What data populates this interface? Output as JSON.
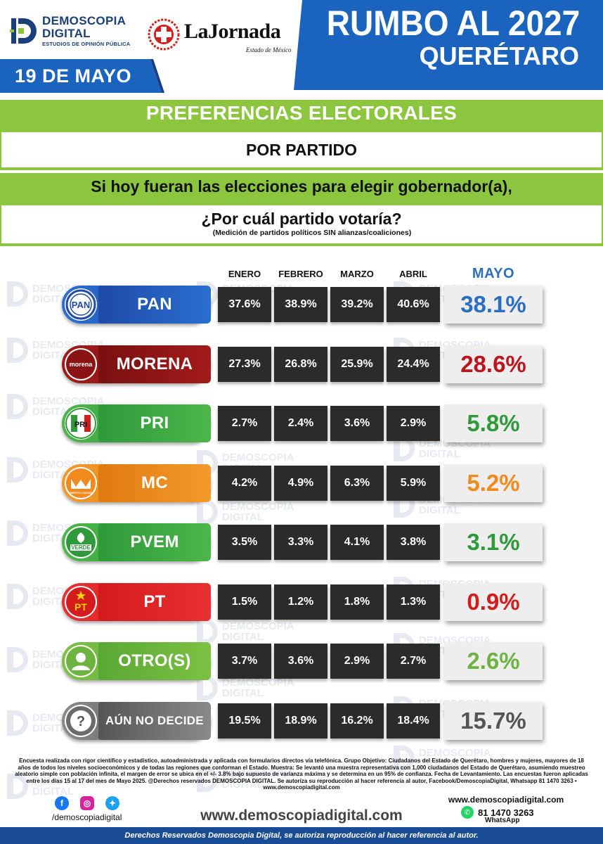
{
  "header": {
    "date": "19 DE MAYO",
    "brand_line1": "DEMOSCOPIA",
    "brand_line2": "DIGITAL",
    "brand_tagline": "ESTUDIOS DE OPINIÓN PÚBLICA",
    "partner_name": "LaJornada",
    "partner_sub": "Estado de México",
    "title_line1": "RUMBO AL 2027",
    "title_line2": "QUERÉTARO",
    "colors": {
      "blue": "#1a64c0",
      "dark_blue": "#1a3f7a",
      "green": "#8cc63f"
    }
  },
  "section": {
    "title": "PREFERENCIAS ELECTORALES",
    "subtitle": "POR PARTIDO",
    "question_line1": "Si hoy fueran las elecciones para elegir gobernador(a),",
    "question_line2": "¿Por cuál partido votaría?",
    "note": "(Medición de partidos políticos SIN alianzas/coaliciones)"
  },
  "watermark": {
    "line1": "DEMOSCOPIA",
    "line2": "DIGITAL"
  },
  "chart_data": {
    "type": "table",
    "columns": [
      "ENERO",
      "FEBRERO",
      "MARZO",
      "ABRIL",
      "MAYO"
    ],
    "rows": [
      {
        "party": "PAN",
        "logo": "PAN",
        "color": "#1f4aa8",
        "color_light": "#2a6fd0",
        "may_color": "#2b6fc4",
        "values": [
          "37.6%",
          "38.9%",
          "39.2%",
          "40.6%"
        ],
        "may": "38.1%"
      },
      {
        "party": "MORENA",
        "logo": "morena",
        "color": "#7a1010",
        "color_light": "#a31b1b",
        "may_color": "#c0141c",
        "values": [
          "27.3%",
          "26.8%",
          "25.9%",
          "24.4%"
        ],
        "may": "28.6%"
      },
      {
        "party": "PRI",
        "logo": "PRI",
        "color": "#2e9a3a",
        "color_light": "#4cb64a",
        "may_color": "#2e9a3a",
        "values": [
          "2.7%",
          "2.4%",
          "3.6%",
          "2.9%"
        ],
        "may": "5.8%"
      },
      {
        "party": "MC",
        "logo": "MOVIMIENTO CIUDADANO",
        "color": "#e07a10",
        "color_light": "#f39a2a",
        "may_color": "#f08a1c",
        "values": [
          "4.2%",
          "4.9%",
          "6.3%",
          "5.9%"
        ],
        "may": "5.2%"
      },
      {
        "party": "PVEM",
        "logo": "VERDE",
        "color": "#2e9a3a",
        "color_light": "#4cb64a",
        "may_color": "#2e9a3a",
        "values": [
          "3.5%",
          "3.3%",
          "4.1%",
          "3.8%"
        ],
        "may": "3.1%"
      },
      {
        "party": "PT",
        "logo": "PT",
        "color": "#d41c1c",
        "color_light": "#e83030",
        "may_color": "#d41c1c",
        "values": [
          "1.5%",
          "1.2%",
          "1.8%",
          "1.3%"
        ],
        "may": "0.9%"
      },
      {
        "party": "OTRO(S)",
        "logo": "person-icon",
        "color": "#5aa834",
        "color_light": "#7cc143",
        "may_color": "#6db33f",
        "values": [
          "3.7%",
          "3.6%",
          "2.9%",
          "2.7%"
        ],
        "may": "2.6%"
      },
      {
        "party": "AÚN NO DECIDE",
        "logo": "?",
        "color": "#555555",
        "color_light": "#8a8a8a",
        "may_color": "#555555",
        "values": [
          "19.5%",
          "18.9%",
          "16.2%",
          "18.4%"
        ],
        "may": "15.7%"
      }
    ]
  },
  "footer": {
    "methodology": "Encuesta realizada con rigor científico y estadístico, autoadministrada y aplicada con formularios directos vía telefónica. Grupo Objetivo: Ciudadanos del Estado de Querétaro, hombres y mujeres, mayores de 18 años de todos los niveles socioeconómicos y de todas las regiones que conforman el Estado. Muestra: Se levantó una muestra representativa con 1,000 ciudadanos del Estado de Querétaro, asumiendo muestreo aleatorio simple con población infinita, el margen de error se ubica en el +/- 3.8% bajo supuesto de varianza máxima y se determina en un 95% de confianza. Fecha de Levantamiento. Las encuestas fueron aplicadas entre los días 15 al 17 del mes de Mayo 2025. @Derechos reservados DEMOSCOPIA DIGITAL. Se autoriza su reproducción al hacer referencia al autor, Facebook/DemoscopiaDigital, Whatsapp 81 1470 3263 • www.demoscopiadigital.com",
    "handle": "/demoscopiadigital",
    "website_big": "www.demoscopiadigital.com",
    "website_small": "www.demoscopiadigital.com",
    "whatsapp_number": "81 1470 3263",
    "whatsapp_label": "WhatsApp",
    "rights": "Derechos Reservados Demoscopia Digital, se autoriza reproducción al hacer referencia al autor.",
    "social_icons": [
      "facebook-icon",
      "instagram-icon",
      "twitter-icon"
    ]
  }
}
